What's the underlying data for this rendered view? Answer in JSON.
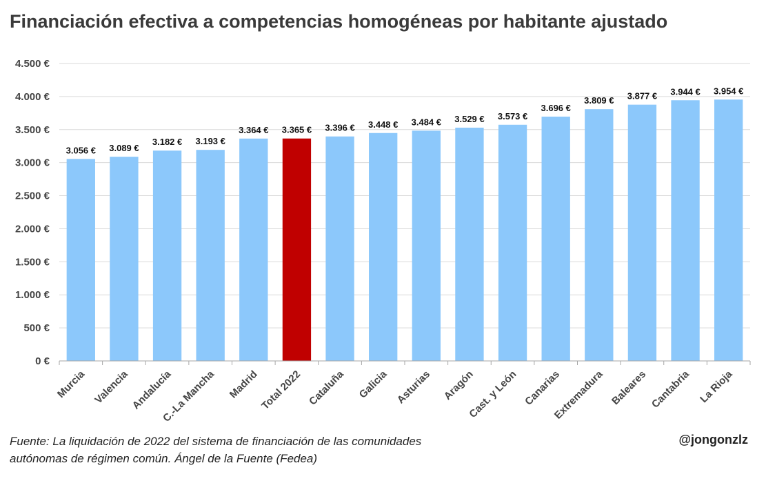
{
  "chart_data": {
    "type": "bar",
    "title": "Financiación efectiva a competencias homogéneas por habitante ajustado",
    "categories": [
      "Murcia",
      "Valencia",
      "Andalucía",
      "C.-La Mancha",
      "Madrid",
      "Total 2022",
      "Cataluña",
      "Galicia",
      "Asturias",
      "Aragón",
      "Cast. y León",
      "Canarias",
      "Extremadura",
      "Baleares",
      "Cantabria",
      "La Rioja"
    ],
    "values": [
      3056,
      3089,
      3182,
      3193,
      3364,
      3365,
      3396,
      3448,
      3484,
      3529,
      3573,
      3696,
      3809,
      3877,
      3944,
      3954
    ],
    "data_labels": [
      "3.056 €",
      "3.089 €",
      "3.182 €",
      "3.193 €",
      "3.364 €",
      "3.365 €",
      "3.396 €",
      "3.448 €",
      "3.484 €",
      "3.529 €",
      "3.573 €",
      "3.696 €",
      "3.809 €",
      "3.877 €",
      "3.944 €",
      "3.954 €"
    ],
    "ylim": [
      0,
      4500
    ],
    "yticks": [
      0,
      500,
      1000,
      1500,
      2000,
      2500,
      3000,
      3500,
      4000,
      4500
    ],
    "ytick_labels": [
      "0 €",
      "500 €",
      "1.000 €",
      "1.500 €",
      "2.000 €",
      "2.500 €",
      "3.000 €",
      "3.500 €",
      "4.000 €",
      "4.500 €"
    ],
    "grid": true,
    "xlabel": "",
    "ylabel": "",
    "colors": {
      "default": "#8CC8FB",
      "highlight": "#C00000",
      "highlight_category": "Total 2022"
    }
  },
  "footer": {
    "source_line1": "Fuente: La liquidación de 2022 del sistema de financiación de las comunidades",
    "source_line2": "autónomas de régimen común. Ángel de la Fuente (Fedea)",
    "credit": "@jongonzlz"
  }
}
